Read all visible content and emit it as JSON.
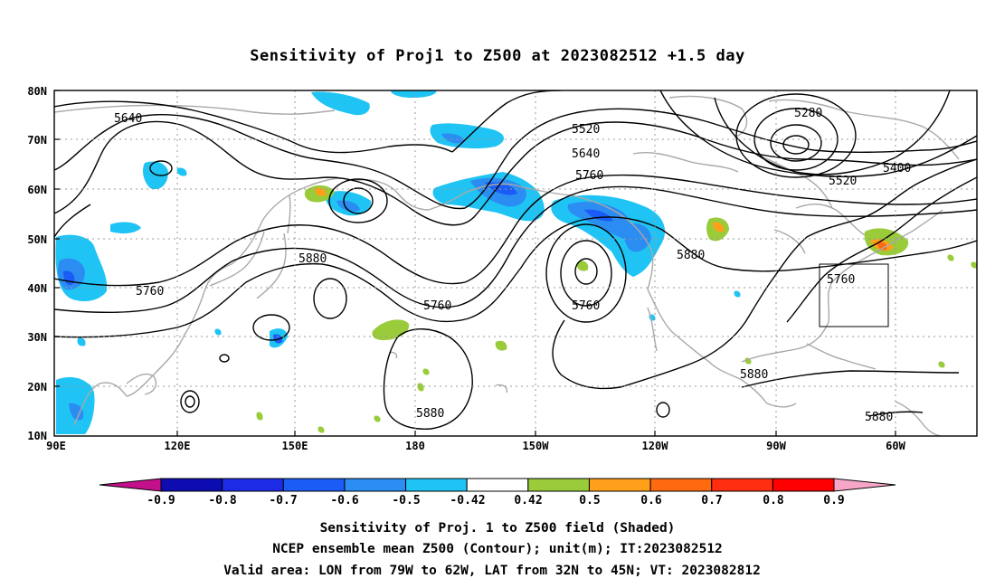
{
  "title": "Sensitivity of Proj1 to Z500 at 2023082512 +1.5 day",
  "lat_labels": [
    "80N",
    "70N",
    "60N",
    "50N",
    "40N",
    "30N",
    "20N",
    "10N"
  ],
  "lon_labels": [
    "90E",
    "120E",
    "150E",
    "180",
    "150W",
    "120W",
    "90W",
    "60W"
  ],
  "contour_labels": [
    "5640",
    "5520",
    "5280",
    "5640",
    "5760",
    "5400",
    "5520",
    "5880",
    "5760",
    "5880",
    "5760",
    "5760",
    "5760",
    "5880",
    "5880",
    "5880"
  ],
  "colorbar": {
    "labels": [
      "-0.9",
      "-0.8",
      "-0.7",
      "-0.6",
      "-0.5",
      "-0.42",
      "0.42",
      "0.5",
      "0.6",
      "0.7",
      "0.8",
      "0.9"
    ],
    "colors": {
      "below": "#c5108c",
      "bins": [
        "#0c0cb0",
        "#1c2ce6",
        "#1a5cf5",
        "#2b8cf2",
        "#1fc4f4",
        "#ffffff",
        "#99cb3a",
        "#ff9f1a",
        "#ff6a10",
        "#ff2e10",
        "#ff0000"
      ],
      "above": "#f7a6c8"
    }
  },
  "captions": [
    "Sensitivity of Proj. 1 to Z500 field (Shaded)",
    "NCEP ensemble mean Z500 (Contour); unit(m); IT:2023082512",
    "Valid area: LON from 79W to 62W, LAT from 32N to 45N; VT: 2023082812"
  ]
}
